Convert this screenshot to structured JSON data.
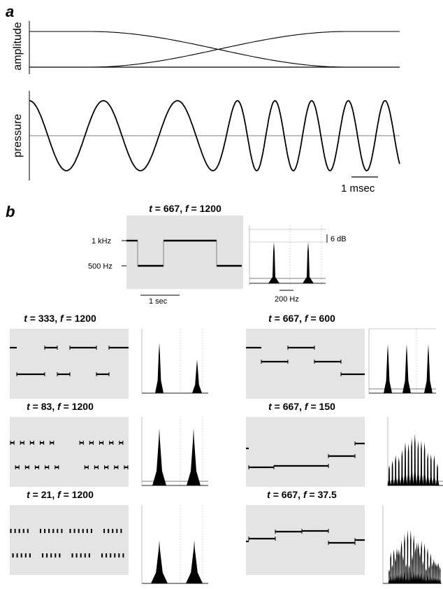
{
  "panel_a": {
    "letter": "a",
    "amplitude_ylabel": "amplitude",
    "pressure_ylabel": "pressure",
    "scale_label": "1 msec"
  },
  "panel_b": {
    "letter": "b",
    "main": {
      "t_sym": "t",
      "t_val": "667",
      "f_sym": "f",
      "f_val": "1200",
      "y_high_label": "1 kHz",
      "y_low_label": "500 Hz",
      "time_scale": "1 sec",
      "freq_scale": "200 Hz",
      "db_scale": "6 dB"
    },
    "sub": [
      {
        "t_sym": "t",
        "t_val": "333",
        "f_sym": "f",
        "f_val": "1200"
      },
      {
        "t_sym": "t",
        "t_val": "667",
        "f_sym": "f",
        "f_val": "600"
      },
      {
        "t_sym": "t",
        "t_val": "83",
        "f_sym": "f",
        "f_val": "1200"
      },
      {
        "t_sym": "t",
        "t_val": "667",
        "f_sym": "f",
        "f_val": "150"
      },
      {
        "t_sym": "t",
        "t_val": "21",
        "f_sym": "f",
        "f_val": "1200"
      },
      {
        "t_sym": "t",
        "t_val": "667",
        "f_sym": "f",
        "f_val": "37.5"
      }
    ]
  },
  "colors": {
    "ink": "#000000",
    "gray_panel": "#e4e4e4",
    "guide": "#9a9a9a"
  }
}
